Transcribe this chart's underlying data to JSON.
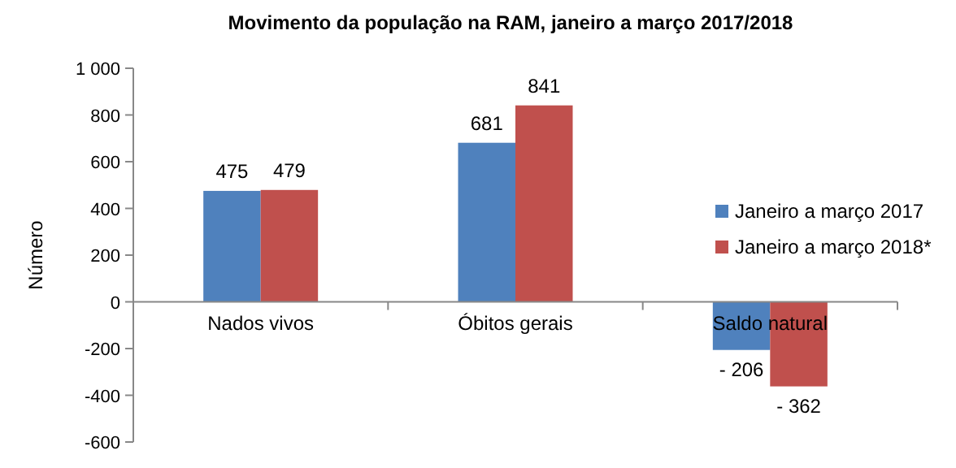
{
  "chart_data": {
    "type": "bar",
    "title": "Movimento da população na RAM, janeiro a março 2017/2018",
    "ylabel": "Número",
    "categories": [
      "Nados vivos",
      "Óbitos gerais",
      "Saldo natural"
    ],
    "series": [
      {
        "name": "Janeiro a março 2017",
        "color": "#4f81bd",
        "values": [
          475,
          681,
          -206
        ],
        "value_labels": [
          "475",
          "681",
          "- 206"
        ]
      },
      {
        "name": "Janeiro a março 2018*",
        "color": "#c0504d",
        "values": [
          479,
          841,
          -362
        ],
        "value_labels": [
          "479",
          "841",
          "- 362"
        ]
      }
    ],
    "ylim": [
      -600,
      1000
    ],
    "yticks": [
      -600,
      -400,
      -200,
      0,
      200,
      400,
      600,
      800,
      {
        "value": 1000,
        "label": "1 000"
      }
    ],
    "grid": false,
    "legend": "right"
  }
}
